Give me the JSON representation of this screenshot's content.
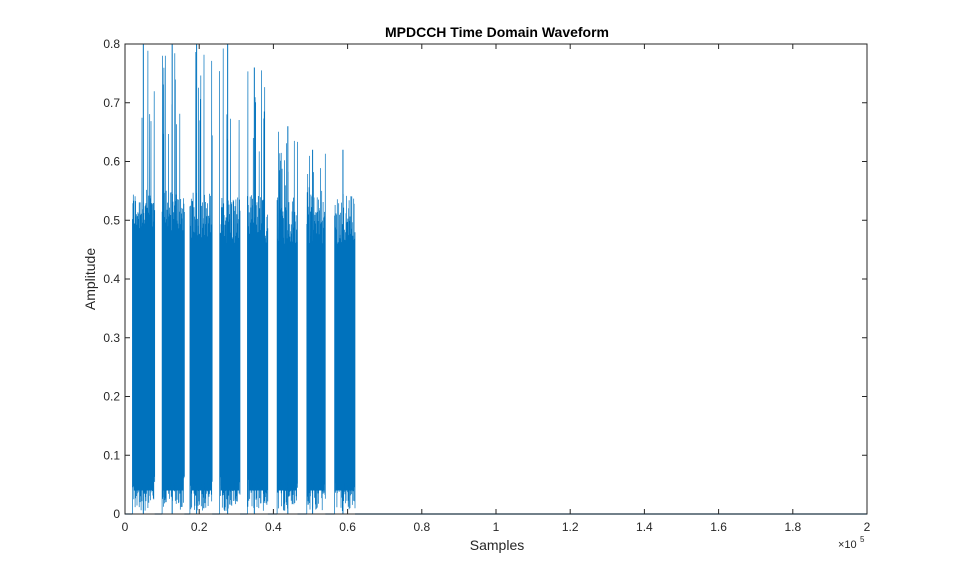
{
  "chart_data": {
    "type": "line",
    "title": "MPDCCH Time Domain Waveform",
    "xlabel": "Samples",
    "ylabel": "Amplitude",
    "xlim": [
      0,
      200000
    ],
    "ylim": [
      0,
      0.8
    ],
    "x_tick_values": [
      0,
      20000,
      40000,
      60000,
      80000,
      100000,
      120000,
      140000,
      160000,
      180000,
      200000
    ],
    "x_tick_labels": [
      "0",
      "0.2",
      "0.4",
      "0.6",
      "0.8",
      "1",
      "1.2",
      "1.4",
      "1.6",
      "1.8",
      "2"
    ],
    "x_exponent_label": "×10",
    "x_exponent_power": "5",
    "y_tick_values": [
      0,
      0.1,
      0.2,
      0.3,
      0.4,
      0.5,
      0.6,
      0.7,
      0.8
    ],
    "y_tick_labels": [
      "0",
      "0.1",
      "0.2",
      "0.3",
      "0.4",
      "0.5",
      "0.6",
      "0.7",
      "0.8"
    ],
    "grid": false,
    "box": true,
    "series_color": "#0072BD",
    "series": [
      {
        "bursts": [
          {
            "x_start": 2000,
            "x_end": 8000,
            "peak": 0.8,
            "dense_level": 0.48
          },
          {
            "x_start": 10000,
            "x_end": 16000,
            "peak": 0.8,
            "dense_level": 0.48
          },
          {
            "x_start": 17500,
            "x_end": 23500,
            "peak": 0.8,
            "dense_level": 0.47
          },
          {
            "x_start": 25500,
            "x_end": 31000,
            "peak": 0.8,
            "dense_level": 0.46
          },
          {
            "x_start": 33000,
            "x_end": 38500,
            "peak": 0.76,
            "dense_level": 0.46
          },
          {
            "x_start": 41000,
            "x_end": 46500,
            "peak": 0.66,
            "dense_level": 0.46
          },
          {
            "x_start": 49000,
            "x_end": 54000,
            "peak": 0.62,
            "dense_level": 0.46
          },
          {
            "x_start": 56500,
            "x_end": 62000,
            "peak": 0.62,
            "dense_level": 0.46
          }
        ],
        "tail": {
          "x_start": 62000,
          "x_end": 200000,
          "value": 0
        }
      }
    ]
  }
}
